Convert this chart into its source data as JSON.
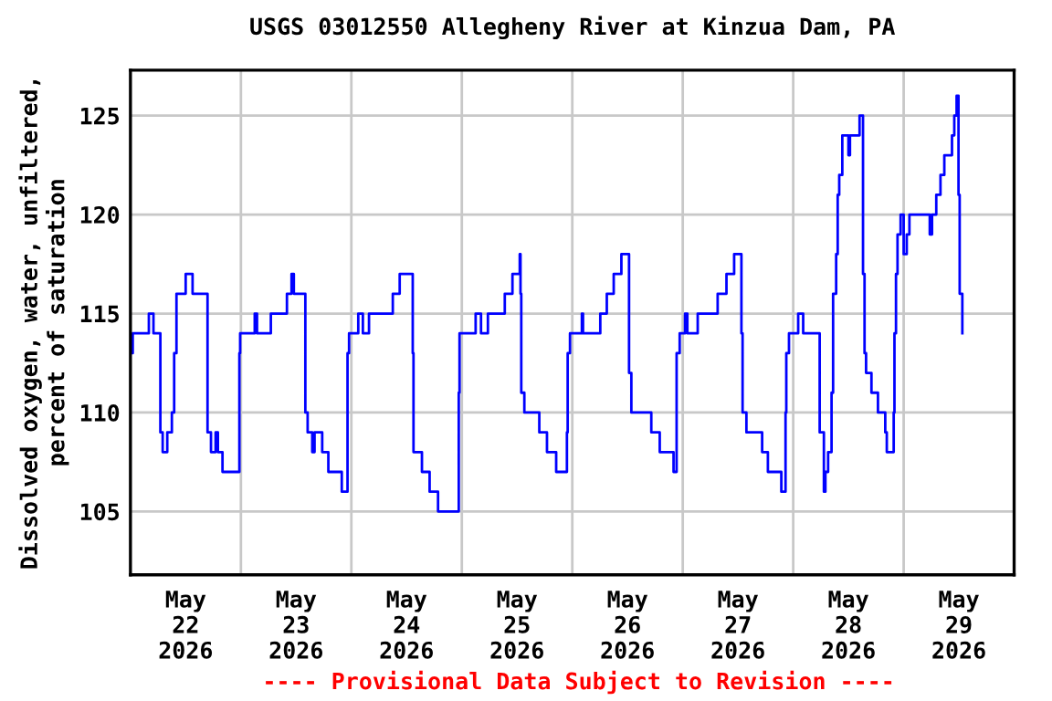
{
  "chart_data": {
    "type": "step",
    "title": "USGS 03012550 Allegheny River at Kinzua Dam, PA",
    "ylabel": "Dissolved oxygen, water, unfiltered,\npercent of saturation",
    "annotations": [
      "---- Provisional Data Subject to Revision ----"
    ],
    "xlim": [
      "2026-05-22T00:00",
      "2026-05-30T00:00"
    ],
    "xticks": [
      {
        "value": "2026-05-22T12:00",
        "label": "May\n22\n2026"
      },
      {
        "value": "2026-05-23T00:00",
        "label": null
      },
      {
        "value": "2026-05-23T12:00",
        "label": "May\n23\n2026"
      },
      {
        "value": "2026-05-24T00:00",
        "label": null
      },
      {
        "value": "2026-05-24T12:00",
        "label": "May\n24\n2026"
      },
      {
        "value": "2026-05-25T00:00",
        "label": null
      },
      {
        "value": "2026-05-25T12:00",
        "label": "May\n25\n2026"
      },
      {
        "value": "2026-05-26T00:00",
        "label": null
      },
      {
        "value": "2026-05-26T12:00",
        "label": "May\n26\n2026"
      },
      {
        "value": "2026-05-27T00:00",
        "label": null
      },
      {
        "value": "2026-05-27T12:00",
        "label": "May\n27\n2026"
      },
      {
        "value": "2026-05-28T00:00",
        "label": null
      },
      {
        "value": "2026-05-28T12:00",
        "label": "May\n28\n2026"
      },
      {
        "value": "2026-05-29T00:00",
        "label": null
      },
      {
        "value": "2026-05-29T12:00",
        "label": "May\n29\n2026"
      }
    ],
    "ylim": [
      101.8,
      127.3
    ],
    "yticks": [
      105,
      110,
      115,
      120,
      125
    ],
    "grid": true,
    "series": [
      {
        "color": "#0000ff",
        "x": [
          "2026-05-22T00:15",
          "2026-05-22T00:30",
          "2026-05-22T04:00",
          "2026-05-22T05:00",
          "2026-05-22T06:30",
          "2026-05-22T07:00",
          "2026-05-22T08:00",
          "2026-05-22T09:00",
          "2026-05-22T09:30",
          "2026-05-22T10:00",
          "2026-05-22T12:00",
          "2026-05-22T13:30",
          "2026-05-22T16:45",
          "2026-05-22T17:30",
          "2026-05-22T18:30",
          "2026-05-22T19:00",
          "2026-05-22T20:00",
          "2026-05-22T23:40",
          "2026-05-22T23:50",
          "2026-05-23T03:00",
          "2026-05-23T03:30",
          "2026-05-23T06:30",
          "2026-05-23T10:00",
          "2026-05-23T11:00",
          "2026-05-23T11:30",
          "2026-05-23T14:00",
          "2026-05-23T14:30",
          "2026-05-23T15:30",
          "2026-05-23T16:00",
          "2026-05-23T17:40",
          "2026-05-23T19:00",
          "2026-05-23T21:55",
          "2026-05-23T23:10",
          "2026-05-23T23:30",
          "2026-05-24T01:30",
          "2026-05-24T02:30",
          "2026-05-24T03:50",
          "2026-05-24T09:00",
          "2026-05-24T10:30",
          "2026-05-24T13:20",
          "2026-05-24T13:30",
          "2026-05-24T15:20",
          "2026-05-24T17:00",
          "2026-05-24T18:50",
          "2026-05-24T23:20",
          "2026-05-24T23:30",
          "2026-05-25T03:00",
          "2026-05-25T04:10",
          "2026-05-25T05:40",
          "2026-05-25T09:20",
          "2026-05-25T11:00",
          "2026-05-25T12:35",
          "2026-05-25T12:45",
          "2026-05-25T12:55",
          "2026-05-25T13:35",
          "2026-05-25T16:50",
          "2026-05-25T18:30",
          "2026-05-25T20:30",
          "2026-05-25T22:50",
          "2026-05-25T23:00",
          "2026-05-25T23:30",
          "2026-05-26T02:05",
          "2026-05-26T02:20",
          "2026-05-26T06:05",
          "2026-05-26T07:30",
          "2026-05-26T09:00",
          "2026-05-26T10:40",
          "2026-05-26T12:20",
          "2026-05-26T12:50",
          "2026-05-26T17:10",
          "2026-05-26T19:00",
          "2026-05-26T22:00",
          "2026-05-26T22:40",
          "2026-05-26T23:20",
          "2026-05-27T00:30",
          "2026-05-27T01:00",
          "2026-05-27T03:15",
          "2026-05-27T07:35",
          "2026-05-27T09:30",
          "2026-05-27T11:10",
          "2026-05-27T12:45",
          "2026-05-27T13:00",
          "2026-05-27T13:50",
          "2026-05-27T17:15",
          "2026-05-27T18:30",
          "2026-05-27T21:25",
          "2026-05-27T22:20",
          "2026-05-27T22:30",
          "2026-05-27T23:05",
          "2026-05-28T01:05",
          "2026-05-28T02:10",
          "2026-05-28T05:45",
          "2026-05-28T06:40",
          "2026-05-28T07:00",
          "2026-05-28T07:35",
          "2026-05-28T08:20",
          "2026-05-28T08:40",
          "2026-05-28T09:20",
          "2026-05-28T09:40",
          "2026-05-28T10:00",
          "2026-05-28T10:40",
          "2026-05-28T12:00",
          "2026-05-28T12:20",
          "2026-05-28T14:25",
          "2026-05-28T15:10",
          "2026-05-28T15:30",
          "2026-05-28T15:50",
          "2026-05-28T17:00",
          "2026-05-28T18:25",
          "2026-05-28T20:00",
          "2026-05-28T20:20",
          "2026-05-28T21:50",
          "2026-05-28T22:00",
          "2026-05-28T22:20",
          "2026-05-28T22:40",
          "2026-05-28T23:20",
          "2026-05-29T00:00",
          "2026-05-29T00:40",
          "2026-05-29T01:15",
          "2026-05-29T05:40",
          "2026-05-29T06:10",
          "2026-05-29T07:05",
          "2026-05-29T08:00",
          "2026-05-29T08:50",
          "2026-05-29T10:30",
          "2026-05-29T11:00",
          "2026-05-29T11:30",
          "2026-05-29T11:55",
          "2026-05-29T12:10",
          "2026-05-29T12:45"
        ],
        "values": [
          113,
          114,
          115,
          114,
          109,
          108,
          109,
          110,
          113,
          116,
          117,
          116,
          109,
          108,
          109,
          108,
          107,
          113,
          114,
          115,
          114,
          115,
          116,
          117,
          116,
          110,
          109,
          108,
          109,
          108,
          107,
          106,
          113,
          114,
          115,
          114,
          115,
          116,
          117,
          113,
          108,
          107,
          106,
          105,
          111,
          114,
          115,
          114,
          115,
          116,
          117,
          118,
          116,
          111,
          110,
          109,
          108,
          107,
          109,
          113,
          114,
          115,
          114,
          115,
          116,
          117,
          118,
          112,
          110,
          109,
          108,
          107,
          113,
          114,
          115,
          114,
          115,
          116,
          117,
          118,
          114,
          110,
          109,
          108,
          107,
          106,
          110,
          113,
          114,
          115,
          114,
          109,
          106,
          107,
          108,
          111,
          116,
          118,
          121,
          122,
          124,
          123,
          124,
          125,
          117,
          113,
          112,
          111,
          110,
          109,
          108,
          110,
          114,
          117,
          119,
          120,
          118,
          119,
          120,
          119,
          120,
          121,
          122,
          123,
          124,
          125,
          126,
          121,
          116,
          114
        ]
      }
    ]
  }
}
